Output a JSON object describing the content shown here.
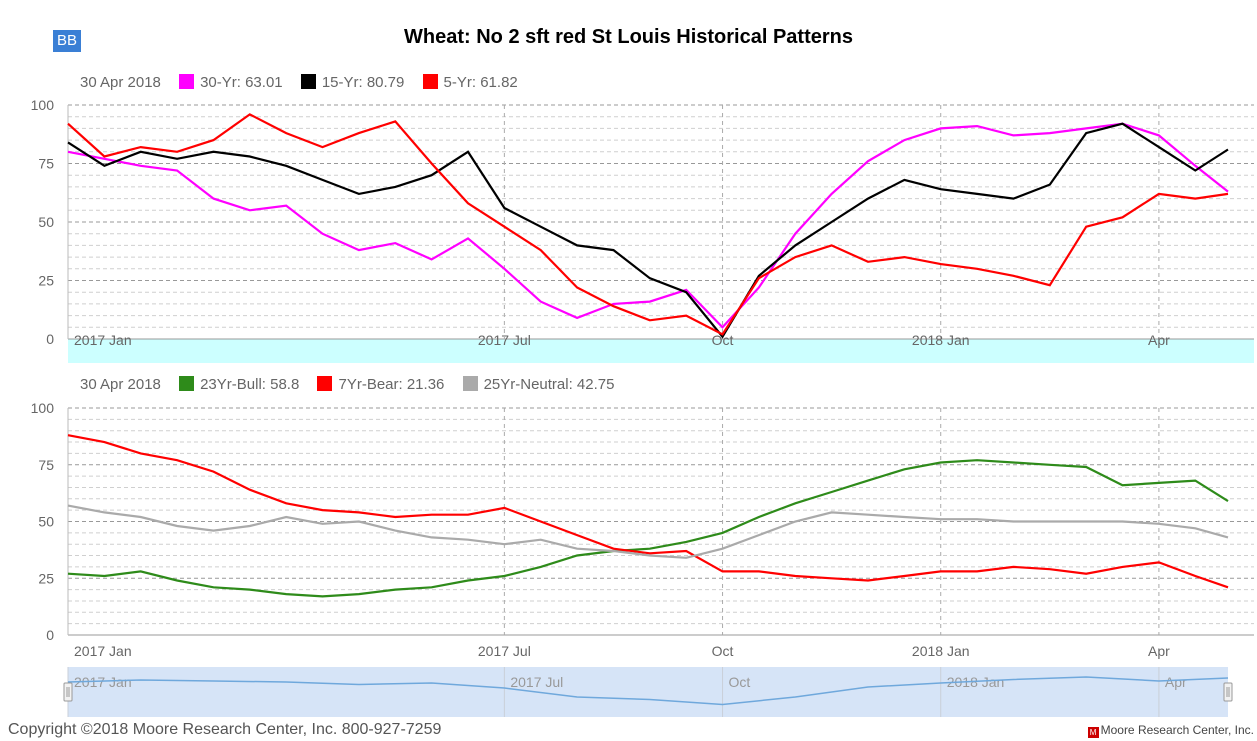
{
  "header": {
    "badge": "BB",
    "title": "Wheat: No 2 sft red St Louis Historical Patterns"
  },
  "top_legend": {
    "date": "30 Apr 2018",
    "items": [
      {
        "label": "30-Yr: 63.01",
        "color": "#ff00ff"
      },
      {
        "label": "15-Yr: 80.79",
        "color": "#000000"
      },
      {
        "label": "5-Yr: 61.82",
        "color": "#ff0000"
      }
    ]
  },
  "bottom_legend": {
    "date": "30 Apr 2018",
    "items": [
      {
        "label": "23Yr-Bull: 58.8",
        "color": "#2e8b1a"
      },
      {
        "label": "7Yr-Bear: 21.36",
        "color": "#ff0000"
      },
      {
        "label": "25Yr-Neutral: 42.75",
        "color": "#aaaaaa"
      }
    ]
  },
  "footer": {
    "copyright": "Copyright ©2018 Moore Research Center, Inc. 800-927-7259",
    "brand": "Moore Research Center, Inc."
  },
  "chart_data": [
    {
      "type": "line",
      "x_ticks": [
        "2017 Jan",
        "2017 Jul",
        "Oct",
        "2018 Jan",
        "Apr"
      ],
      "x_tick_pos": [
        0,
        6,
        9,
        12,
        15
      ],
      "x_range": [
        0,
        15.95
      ],
      "ylim": [
        0,
        100
      ],
      "y_ticks": [
        0,
        25,
        50,
        75,
        100
      ],
      "grid": true,
      "series": [
        {
          "name": "30-Yr",
          "color": "#ff00ff",
          "x": [
            0,
            0.5,
            1,
            1.5,
            2,
            2.5,
            3,
            3.5,
            4,
            4.5,
            5,
            5.5,
            6,
            6.5,
            7,
            7.5,
            8,
            8.5,
            9,
            9.5,
            10,
            10.5,
            11,
            11.5,
            12,
            12.5,
            13,
            13.5,
            14,
            14.5,
            15,
            15.5,
            15.95
          ],
          "y": [
            80,
            77,
            74,
            72,
            60,
            55,
            57,
            45,
            38,
            41,
            34,
            43,
            30,
            16,
            9,
            15,
            16,
            21,
            5,
            22,
            45,
            62,
            76,
            85,
            90,
            91,
            87,
            88,
            90,
            92,
            87,
            74,
            63
          ]
        },
        {
          "name": "15-Yr",
          "color": "#000000",
          "x": [
            0,
            0.5,
            1,
            1.5,
            2,
            2.5,
            3,
            3.5,
            4,
            4.5,
            5,
            5.5,
            6,
            6.5,
            7,
            7.5,
            8,
            8.5,
            9,
            9.5,
            10,
            10.5,
            11,
            11.5,
            12,
            12.5,
            13,
            13.5,
            14,
            14.5,
            15,
            15.5,
            15.95
          ],
          "y": [
            84,
            74,
            80,
            77,
            80,
            78,
            74,
            68,
            62,
            65,
            70,
            80,
            56,
            48,
            40,
            38,
            26,
            20,
            1,
            27,
            40,
            50,
            60,
            68,
            64,
            62,
            60,
            66,
            88,
            92,
            82,
            72,
            81
          ]
        },
        {
          "name": "5-Yr",
          "color": "#ff0000",
          "x": [
            0,
            0.5,
            1,
            1.5,
            2,
            2.5,
            3,
            3.5,
            4,
            4.5,
            5,
            5.5,
            6,
            6.5,
            7,
            7.5,
            8,
            8.5,
            9,
            9.5,
            10,
            10.5,
            11,
            11.5,
            12,
            12.5,
            13,
            13.5,
            14,
            14.5,
            15,
            15.5,
            15.95
          ],
          "y": [
            92,
            78,
            82,
            80,
            85,
            96,
            88,
            82,
            88,
            93,
            75,
            58,
            48,
            38,
            22,
            14,
            8,
            10,
            2,
            26,
            35,
            40,
            33,
            35,
            32,
            30,
            27,
            23,
            48,
            52,
            62,
            60,
            62
          ]
        }
      ]
    },
    {
      "type": "line",
      "x_ticks": [
        "2017 Jan",
        "2017 Jul",
        "Oct",
        "2018 Jan",
        "Apr"
      ],
      "x_tick_pos": [
        0,
        6,
        9,
        12,
        15
      ],
      "x_range": [
        0,
        15.95
      ],
      "ylim": [
        0,
        100
      ],
      "y_ticks": [
        0,
        25,
        50,
        75,
        100
      ],
      "grid": true,
      "series": [
        {
          "name": "23Yr-Bull",
          "color": "#2e8b1a",
          "x": [
            0,
            0.5,
            1,
            1.5,
            2,
            2.5,
            3,
            3.5,
            4,
            4.5,
            5,
            5.5,
            6,
            6.5,
            7,
            7.5,
            8,
            8.5,
            9,
            9.5,
            10,
            10.5,
            11,
            11.5,
            12,
            12.5,
            13,
            13.5,
            14,
            14.5,
            15,
            15.5,
            15.95
          ],
          "y": [
            27,
            26,
            28,
            24,
            21,
            20,
            18,
            17,
            18,
            20,
            21,
            24,
            26,
            30,
            35,
            37,
            38,
            41,
            45,
            52,
            58,
            63,
            68,
            73,
            76,
            77,
            76,
            75,
            74,
            66,
            67,
            68,
            59
          ]
        },
        {
          "name": "7Yr-Bear",
          "color": "#ff0000",
          "x": [
            0,
            0.5,
            1,
            1.5,
            2,
            2.5,
            3,
            3.5,
            4,
            4.5,
            5,
            5.5,
            6,
            6.5,
            7,
            7.5,
            8,
            8.5,
            9,
            9.5,
            10,
            10.5,
            11,
            11.5,
            12,
            12.5,
            13,
            13.5,
            14,
            14.5,
            15,
            15.5,
            15.95
          ],
          "y": [
            88,
            85,
            80,
            77,
            72,
            64,
            58,
            55,
            54,
            52,
            53,
            53,
            56,
            50,
            44,
            38,
            36,
            37,
            28,
            28,
            26,
            25,
            24,
            26,
            28,
            28,
            30,
            29,
            27,
            30,
            32,
            26,
            21
          ]
        },
        {
          "name": "25Yr-Neutral",
          "color": "#aaaaaa",
          "x": [
            0,
            0.5,
            1,
            1.5,
            2,
            2.5,
            3,
            3.5,
            4,
            4.5,
            5,
            5.5,
            6,
            6.5,
            7,
            7.5,
            8,
            8.5,
            9,
            9.5,
            10,
            10.5,
            11,
            11.5,
            12,
            12.5,
            13,
            13.5,
            14,
            14.5,
            15,
            15.5,
            15.95
          ],
          "y": [
            57,
            54,
            52,
            48,
            46,
            48,
            52,
            49,
            50,
            46,
            43,
            42,
            40,
            42,
            38,
            37,
            35,
            34,
            38,
            44,
            50,
            54,
            53,
            52,
            51,
            51,
            50,
            50,
            50,
            50,
            49,
            47,
            43
          ]
        }
      ]
    },
    {
      "type": "area",
      "x_ticks": [
        "2017 Jan",
        "2017 Jul",
        "Oct",
        "2018 Jan",
        "Apr"
      ],
      "x_tick_pos": [
        0,
        6,
        9,
        12,
        15
      ],
      "x_range": [
        0,
        15.95
      ],
      "color": "#6fa8dc",
      "background": "#d6e4f7",
      "x": [
        0,
        1,
        2,
        3,
        4,
        5,
        6,
        7,
        8,
        9,
        10,
        11,
        12,
        13,
        14,
        15,
        15.95
      ],
      "y": [
        70,
        74,
        72,
        70,
        65,
        68,
        58,
        40,
        35,
        25,
        40,
        60,
        68,
        75,
        80,
        72,
        78
      ]
    }
  ]
}
